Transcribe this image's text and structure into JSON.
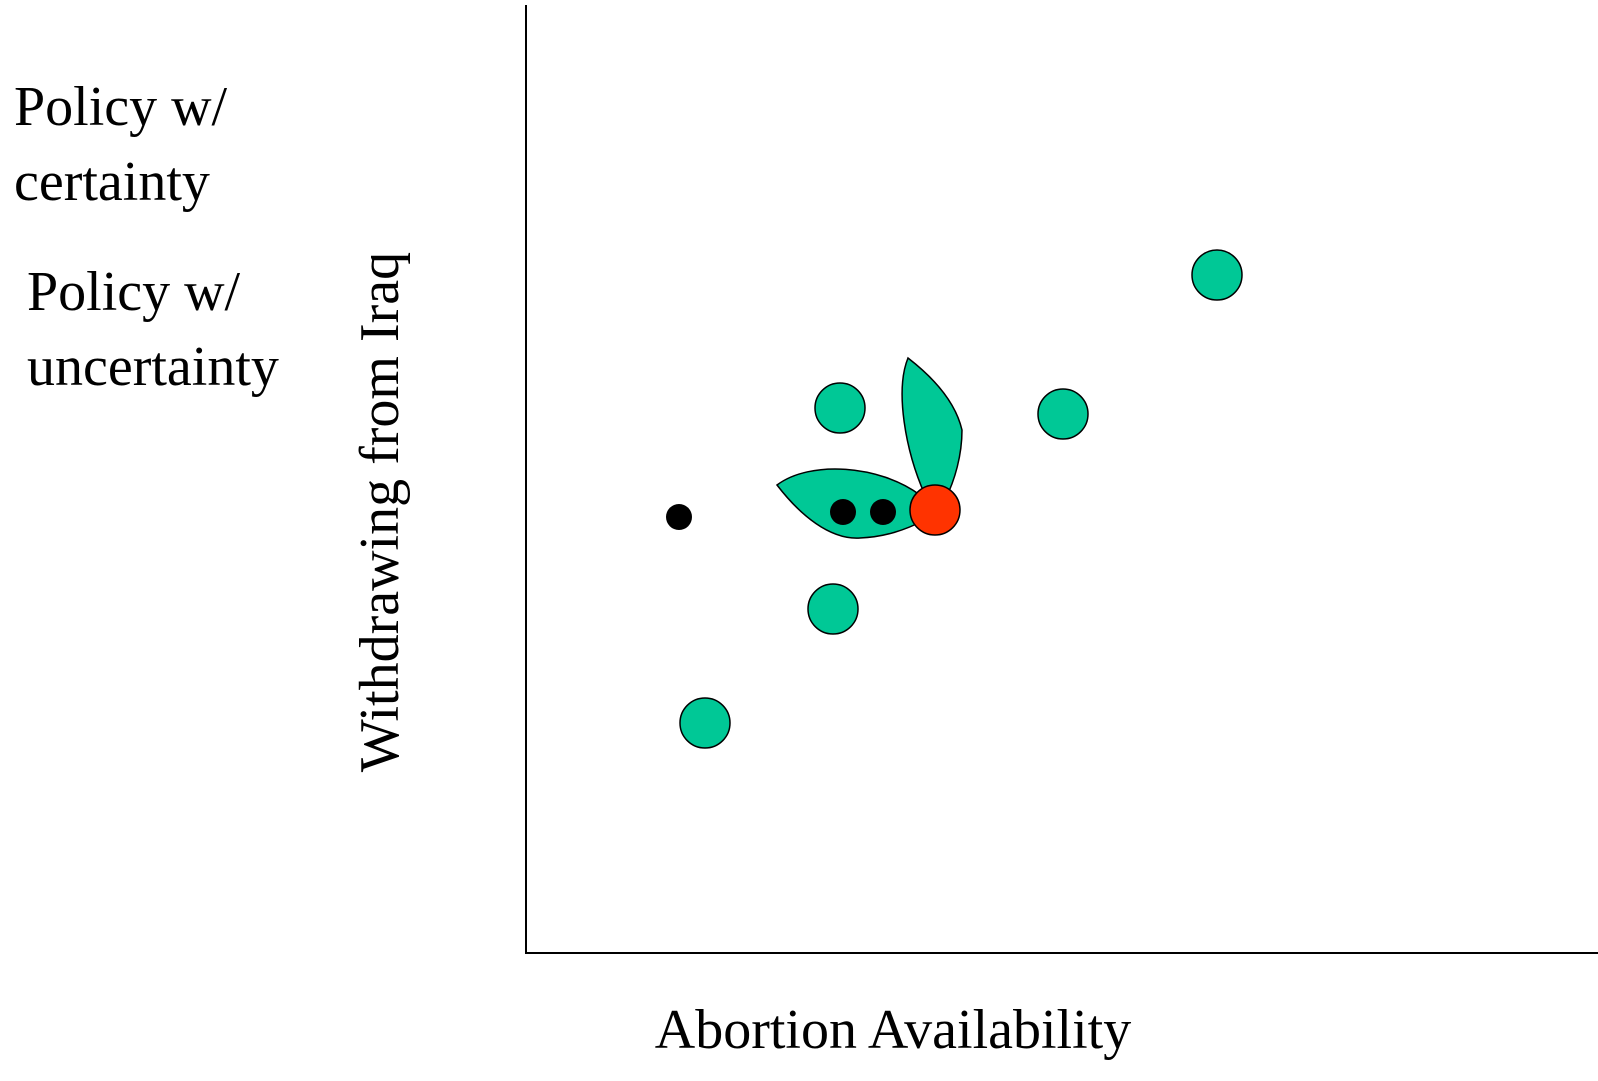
{
  "legend": {
    "certainty": [
      "Policy w/",
      "certainty"
    ],
    "uncertainty": [
      "Policy w/",
      "uncertainty"
    ]
  },
  "axes": {
    "y_label": "Withdrawing from Iraq",
    "x_label": "Abortion Availability"
  }
}
